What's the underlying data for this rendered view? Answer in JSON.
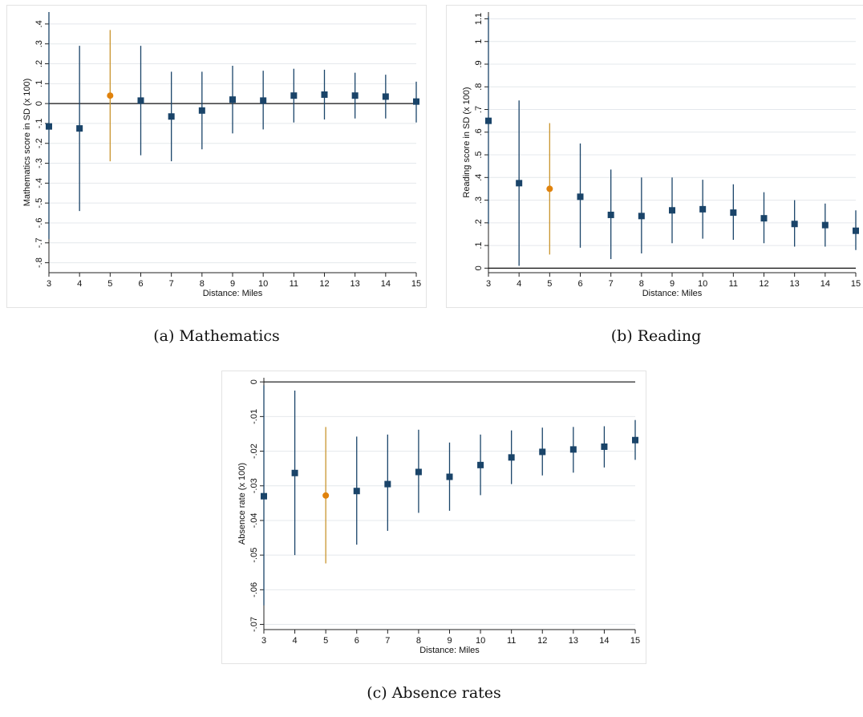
{
  "colors": {
    "primary": "#1a4469",
    "highlight": "#e0820c",
    "highlight_line": "#c9952f",
    "grid": "#e4e8ec",
    "axis": "#222222"
  },
  "captions": {
    "a": "(a)  Mathematics",
    "b": "(b)  Reading",
    "c": "(c)  Absence rates"
  },
  "chart_data": [
    {
      "id": "math",
      "type": "scatter",
      "title": "",
      "xlabel": "Distance: Miles",
      "ylabel": "Mathematics score in SD (x 100)",
      "x": [
        3,
        4,
        5,
        6,
        7,
        8,
        9,
        10,
        11,
        12,
        13,
        14,
        15
      ],
      "ylim": [
        -0.85,
        0.46
      ],
      "yticks": [
        -0.8,
        -0.7,
        -0.6,
        -0.5,
        -0.4,
        -0.3,
        -0.2,
        -0.1,
        0,
        0.1,
        0.2,
        0.3,
        0.4
      ],
      "yticklabels": [
        "-.8",
        "-.7",
        "-.6",
        "-.5",
        "-.4",
        "-.3",
        "-.2",
        "-.1",
        "0",
        ".1",
        ".2",
        ".3",
        ".4"
      ],
      "zero_line": true,
      "grid": true,
      "highlight_x": 5,
      "points": [
        {
          "x": 3,
          "y": -0.115,
          "lo": -0.68,
          "hi": 0.46
        },
        {
          "x": 4,
          "y": -0.125,
          "lo": -0.54,
          "hi": 0.29
        },
        {
          "x": 5,
          "y": 0.04,
          "lo": -0.29,
          "hi": 0.37
        },
        {
          "x": 6,
          "y": 0.015,
          "lo": -0.26,
          "hi": 0.29
        },
        {
          "x": 7,
          "y": -0.065,
          "lo": -0.29,
          "hi": 0.16
        },
        {
          "x": 8,
          "y": -0.035,
          "lo": -0.23,
          "hi": 0.16
        },
        {
          "x": 9,
          "y": 0.02,
          "lo": -0.15,
          "hi": 0.19
        },
        {
          "x": 10,
          "y": 0.015,
          "lo": -0.13,
          "hi": 0.165
        },
        {
          "x": 11,
          "y": 0.04,
          "lo": -0.095,
          "hi": 0.175
        },
        {
          "x": 12,
          "y": 0.045,
          "lo": -0.08,
          "hi": 0.17
        },
        {
          "x": 13,
          "y": 0.04,
          "lo": -0.075,
          "hi": 0.155
        },
        {
          "x": 14,
          "y": 0.035,
          "lo": -0.075,
          "hi": 0.145
        },
        {
          "x": 15,
          "y": 0.01,
          "lo": -0.095,
          "hi": 0.11
        }
      ]
    },
    {
      "id": "reading",
      "type": "scatter",
      "title": "",
      "xlabel": "Distance: Miles",
      "ylabel": "Reading score in SD (x 100)",
      "x": [
        3,
        4,
        5,
        6,
        7,
        8,
        9,
        10,
        11,
        12,
        13,
        14,
        15
      ],
      "ylim": [
        -0.02,
        1.13
      ],
      "yticks": [
        0,
        0.1,
        0.2,
        0.3,
        0.4,
        0.5,
        0.6,
        0.7,
        0.8,
        0.9,
        1.0,
        1.1
      ],
      "yticklabels": [
        "0",
        ".1",
        ".2",
        ".3",
        ".4",
        ".5",
        ".6",
        ".7",
        ".8",
        ".9",
        "1",
        "1.1"
      ],
      "zero_line": true,
      "grid": true,
      "highlight_x": 5,
      "points": [
        {
          "x": 3,
          "y": 0.65,
          "lo": 0.195,
          "hi": 1.11
        },
        {
          "x": 4,
          "y": 0.375,
          "lo": 0.01,
          "hi": 0.74
        },
        {
          "x": 5,
          "y": 0.35,
          "lo": 0.06,
          "hi": 0.64
        },
        {
          "x": 6,
          "y": 0.315,
          "lo": 0.09,
          "hi": 0.55
        },
        {
          "x": 7,
          "y": 0.235,
          "lo": 0.04,
          "hi": 0.435
        },
        {
          "x": 8,
          "y": 0.23,
          "lo": 0.065,
          "hi": 0.4
        },
        {
          "x": 9,
          "y": 0.255,
          "lo": 0.11,
          "hi": 0.4
        },
        {
          "x": 10,
          "y": 0.26,
          "lo": 0.13,
          "hi": 0.39
        },
        {
          "x": 11,
          "y": 0.245,
          "lo": 0.125,
          "hi": 0.37
        },
        {
          "x": 12,
          "y": 0.22,
          "lo": 0.11,
          "hi": 0.335
        },
        {
          "x": 13,
          "y": 0.195,
          "lo": 0.095,
          "hi": 0.3
        },
        {
          "x": 14,
          "y": 0.19,
          "lo": 0.095,
          "hi": 0.285
        },
        {
          "x": 15,
          "y": 0.165,
          "lo": 0.08,
          "hi": 0.255
        }
      ]
    },
    {
      "id": "absence",
      "type": "scatter",
      "title": "",
      "xlabel": "Distance: Miles",
      "ylabel": "Absence rate (x 100)",
      "x": [
        3,
        4,
        5,
        6,
        7,
        8,
        9,
        10,
        11,
        12,
        13,
        14,
        15
      ],
      "ylim": [
        -0.0715,
        0.0012
      ],
      "yticks": [
        -0.07,
        -0.06,
        -0.05,
        -0.04,
        -0.03,
        -0.02,
        -0.01,
        0
      ],
      "yticklabels": [
        "-.07",
        "-.06",
        "-.05",
        "-.04",
        "-.03",
        "-.02",
        "-.01",
        "0"
      ],
      "zero_line": true,
      "grid": true,
      "highlight_x": 5,
      "points": [
        {
          "x": 3,
          "y": -0.033,
          "lo": -0.0645,
          "hi": -0.001
        },
        {
          "x": 4,
          "y": -0.0263,
          "lo": -0.05,
          "hi": -0.0025
        },
        {
          "x": 5,
          "y": -0.0328,
          "lo": -0.0524,
          "hi": -0.013
        },
        {
          "x": 6,
          "y": -0.0315,
          "lo": -0.047,
          "hi": -0.0158
        },
        {
          "x": 7,
          "y": -0.0295,
          "lo": -0.043,
          "hi": -0.0152
        },
        {
          "x": 8,
          "y": -0.026,
          "lo": -0.0378,
          "hi": -0.0138
        },
        {
          "x": 9,
          "y": -0.0274,
          "lo": -0.0372,
          "hi": -0.0175
        },
        {
          "x": 10,
          "y": -0.024,
          "lo": -0.0327,
          "hi": -0.0152
        },
        {
          "x": 11,
          "y": -0.0218,
          "lo": -0.0295,
          "hi": -0.014
        },
        {
          "x": 12,
          "y": -0.0202,
          "lo": -0.027,
          "hi": -0.0132
        },
        {
          "x": 13,
          "y": -0.0195,
          "lo": -0.0262,
          "hi": -0.013
        },
        {
          "x": 14,
          "y": -0.0187,
          "lo": -0.0247,
          "hi": -0.0128
        },
        {
          "x": 15,
          "y": -0.0168,
          "lo": -0.0225,
          "hi": -0.011
        }
      ]
    }
  ]
}
